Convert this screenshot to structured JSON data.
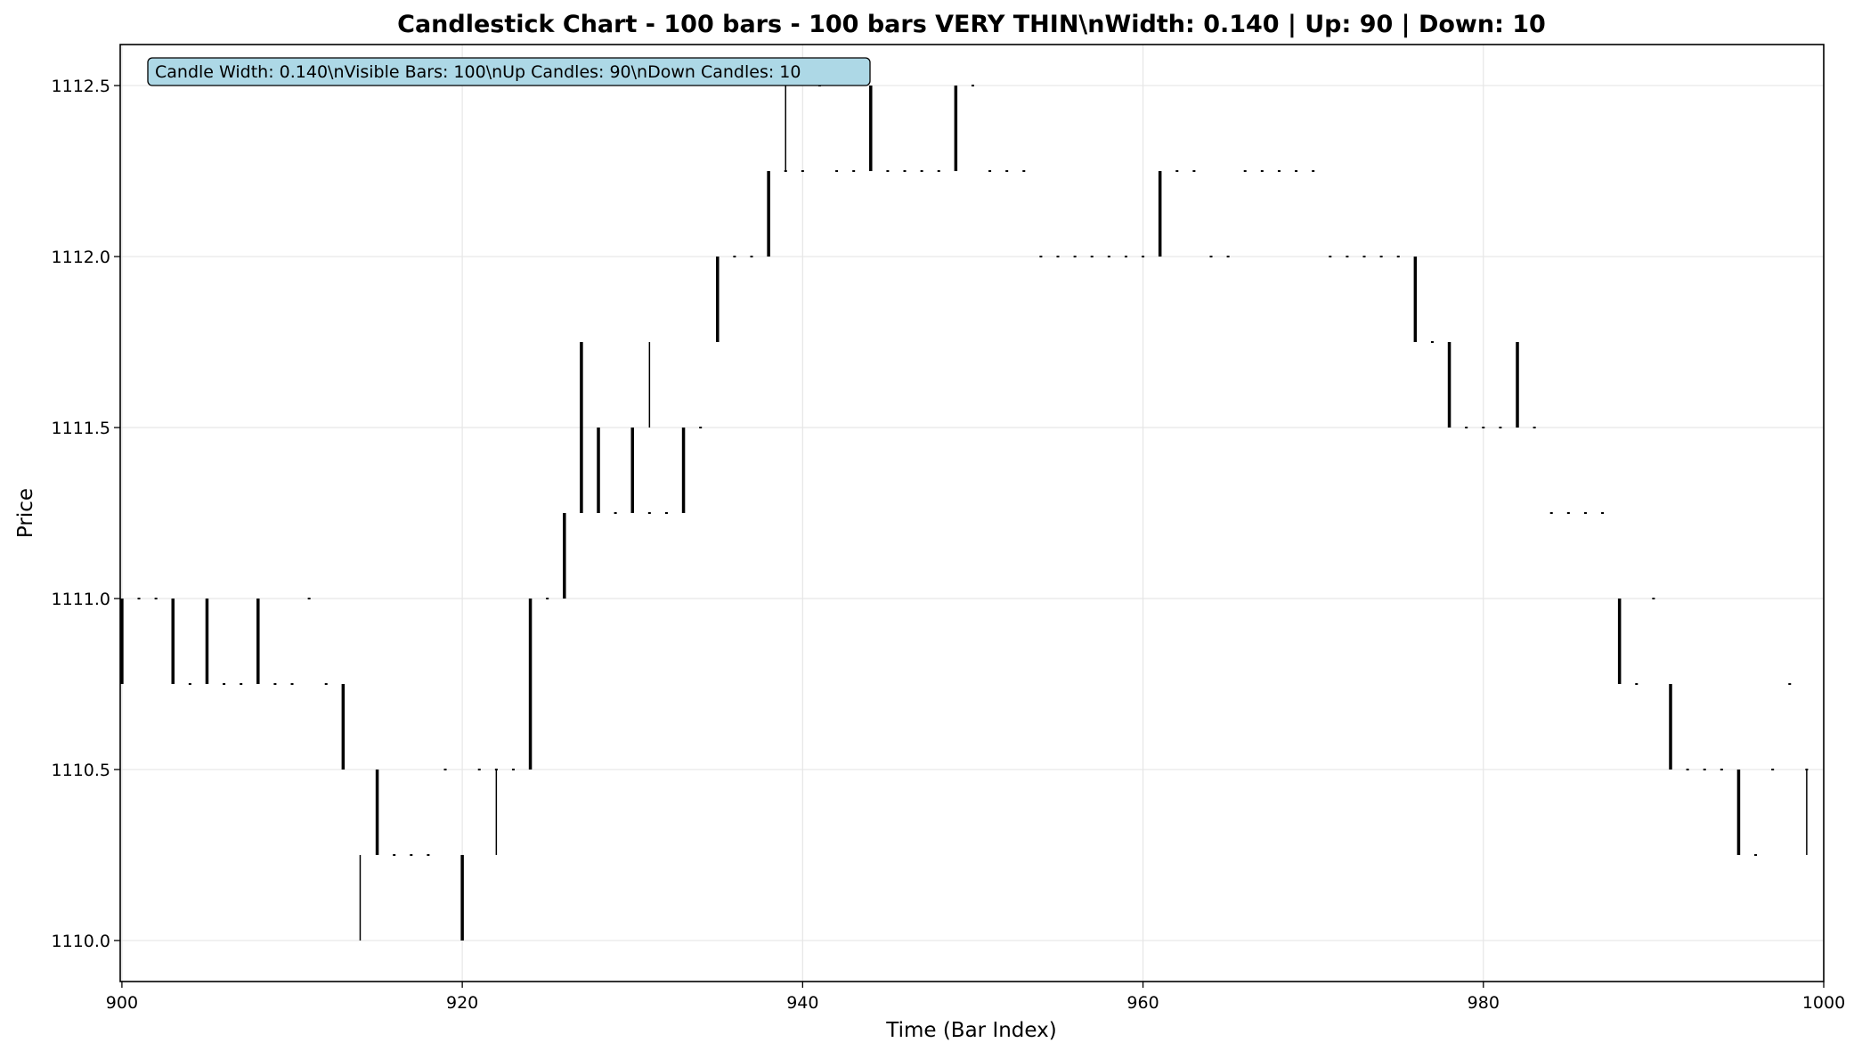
{
  "chart_data": {
    "type": "candlestick",
    "title": "Candlestick Chart - 100 bars - 100 bars VERY THIN\\nWidth: 0.140 | Up: 90 | Down: 10",
    "xlabel": "Time (Bar Index)",
    "ylabel": "Price",
    "xlim": [
      899.9,
      1000
    ],
    "ylim": [
      1109.88,
      1112.62
    ],
    "x_ticks": [
      900,
      920,
      940,
      960,
      980,
      1000
    ],
    "y_ticks": [
      1110.0,
      1110.5,
      1111.0,
      1111.5,
      1112.0,
      1112.5
    ],
    "y_tick_labels": [
      "1110.0",
      "1110.5",
      "1111.0",
      "1111.5",
      "1112.0",
      "1112.5"
    ],
    "grid": true,
    "candle_width": 0.14,
    "colors": {
      "up": "#000000",
      "down": "#000000",
      "grid": "#e6e6e6",
      "info_box": "#add8e6"
    },
    "info_box": {
      "text": "Candle Width: 0.140\\nVisible Bars: 100\\nUp Candles: 90\\nDown Candles: 10",
      "position": "top-left"
    },
    "bodies": [
      {
        "x": 900,
        "low": 1110.75,
        "high": 1111.0
      },
      {
        "x": 903,
        "low": 1110.75,
        "high": 1111.0
      },
      {
        "x": 905,
        "low": 1110.75,
        "high": 1111.0
      },
      {
        "x": 908,
        "low": 1110.75,
        "high": 1111.0
      },
      {
        "x": 913,
        "low": 1110.5,
        "high": 1110.75
      },
      {
        "x": 915,
        "low": 1110.25,
        "high": 1110.5
      },
      {
        "x": 920,
        "low": 1110.0,
        "high": 1110.25
      },
      {
        "x": 924,
        "low": 1110.5,
        "high": 1111.0
      },
      {
        "x": 926,
        "low": 1111.0,
        "high": 1111.25
      },
      {
        "x": 927,
        "low": 1111.25,
        "high": 1111.75
      },
      {
        "x": 928,
        "low": 1111.25,
        "high": 1111.5
      },
      {
        "x": 930,
        "low": 1111.25,
        "high": 1111.5
      },
      {
        "x": 933,
        "low": 1111.25,
        "high": 1111.5
      },
      {
        "x": 935,
        "low": 1111.75,
        "high": 1112.0
      },
      {
        "x": 938,
        "low": 1112.0,
        "high": 1112.25
      },
      {
        "x": 944,
        "low": 1112.25,
        "high": 1112.5
      },
      {
        "x": 949,
        "low": 1112.25,
        "high": 1112.5
      },
      {
        "x": 961,
        "low": 1112.0,
        "high": 1112.25
      },
      {
        "x": 976,
        "low": 1111.75,
        "high": 1112.0
      },
      {
        "x": 978,
        "low": 1111.5,
        "high": 1111.75
      },
      {
        "x": 982,
        "low": 1111.5,
        "high": 1111.75
      },
      {
        "x": 988,
        "low": 1110.75,
        "high": 1111.0
      },
      {
        "x": 991,
        "low": 1110.5,
        "high": 1110.75
      },
      {
        "x": 995,
        "low": 1110.25,
        "high": 1110.5
      }
    ],
    "wicks": [
      {
        "x": 914,
        "low": 1110.0,
        "high": 1110.25
      },
      {
        "x": 922,
        "low": 1110.25,
        "high": 1110.5
      },
      {
        "x": 931,
        "low": 1111.5,
        "high": 1111.75
      },
      {
        "x": 939,
        "low": 1112.25,
        "high": 1112.5
      },
      {
        "x": 999,
        "low": 1110.25,
        "high": 1110.5
      }
    ],
    "dojis": [
      {
        "x": 901,
        "price": 1111.0
      },
      {
        "x": 902,
        "price": 1111.0
      },
      {
        "x": 904,
        "price": 1110.75
      },
      {
        "x": 906,
        "price": 1110.75
      },
      {
        "x": 907,
        "price": 1110.75
      },
      {
        "x": 909,
        "price": 1110.75
      },
      {
        "x": 910,
        "price": 1110.75
      },
      {
        "x": 911,
        "price": 1111.0
      },
      {
        "x": 912,
        "price": 1110.75
      },
      {
        "x": 916,
        "price": 1110.25
      },
      {
        "x": 917,
        "price": 1110.25
      },
      {
        "x": 918,
        "price": 1110.25
      },
      {
        "x": 919,
        "price": 1110.5
      },
      {
        "x": 921,
        "price": 1110.5
      },
      {
        "x": 922,
        "price": 1110.5
      },
      {
        "x": 923,
        "price": 1110.5
      },
      {
        "x": 925,
        "price": 1111.0
      },
      {
        "x": 929,
        "price": 1111.25
      },
      {
        "x": 931,
        "price": 1111.25
      },
      {
        "x": 932,
        "price": 1111.25
      },
      {
        "x": 934,
        "price": 1111.5
      },
      {
        "x": 936,
        "price": 1112.0
      },
      {
        "x": 937,
        "price": 1112.0
      },
      {
        "x": 939,
        "price": 1112.25
      },
      {
        "x": 940,
        "price": 1112.25
      },
      {
        "x": 941,
        "price": 1112.5
      },
      {
        "x": 942,
        "price": 1112.25
      },
      {
        "x": 943,
        "price": 1112.25
      },
      {
        "x": 945,
        "price": 1112.25
      },
      {
        "x": 946,
        "price": 1112.25
      },
      {
        "x": 947,
        "price": 1112.25
      },
      {
        "x": 948,
        "price": 1112.25
      },
      {
        "x": 950,
        "price": 1112.5
      },
      {
        "x": 951,
        "price": 1112.25
      },
      {
        "x": 952,
        "price": 1112.25
      },
      {
        "x": 953,
        "price": 1112.25
      },
      {
        "x": 954,
        "price": 1112.0
      },
      {
        "x": 955,
        "price": 1112.0
      },
      {
        "x": 956,
        "price": 1112.0
      },
      {
        "x": 957,
        "price": 1112.0
      },
      {
        "x": 958,
        "price": 1112.0
      },
      {
        "x": 959,
        "price": 1112.0
      },
      {
        "x": 960,
        "price": 1112.0
      },
      {
        "x": 962,
        "price": 1112.25
      },
      {
        "x": 963,
        "price": 1112.25
      },
      {
        "x": 964,
        "price": 1112.0
      },
      {
        "x": 965,
        "price": 1112.0
      },
      {
        "x": 966,
        "price": 1112.25
      },
      {
        "x": 967,
        "price": 1112.25
      },
      {
        "x": 968,
        "price": 1112.25
      },
      {
        "x": 969,
        "price": 1112.25
      },
      {
        "x": 970,
        "price": 1112.25
      },
      {
        "x": 971,
        "price": 1112.0
      },
      {
        "x": 972,
        "price": 1112.0
      },
      {
        "x": 973,
        "price": 1112.0
      },
      {
        "x": 974,
        "price": 1112.0
      },
      {
        "x": 975,
        "price": 1112.0
      },
      {
        "x": 977,
        "price": 1111.75
      },
      {
        "x": 979,
        "price": 1111.5
      },
      {
        "x": 980,
        "price": 1111.5
      },
      {
        "x": 981,
        "price": 1111.5
      },
      {
        "x": 983,
        "price": 1111.5
      },
      {
        "x": 984,
        "price": 1111.25
      },
      {
        "x": 985,
        "price": 1111.25
      },
      {
        "x": 986,
        "price": 1111.25
      },
      {
        "x": 987,
        "price": 1111.25
      },
      {
        "x": 989,
        "price": 1110.75
      },
      {
        "x": 990,
        "price": 1111.0
      },
      {
        "x": 992,
        "price": 1110.5
      },
      {
        "x": 993,
        "price": 1110.5
      },
      {
        "x": 994,
        "price": 1110.5
      },
      {
        "x": 996,
        "price": 1110.25
      },
      {
        "x": 997,
        "price": 1110.5
      },
      {
        "x": 998,
        "price": 1110.75
      },
      {
        "x": 999,
        "price": 1110.5
      }
    ]
  }
}
